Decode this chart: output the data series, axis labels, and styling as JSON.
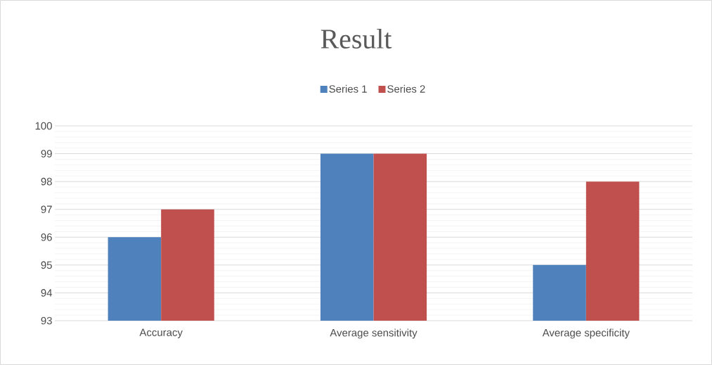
{
  "chart_data": {
    "type": "bar",
    "title": "Result",
    "categories": [
      "Accuracy",
      "Average sensitivity",
      "Average specificity"
    ],
    "series": [
      {
        "name": "Series 1",
        "color": "#4f81bd",
        "values": [
          96,
          99,
          95
        ]
      },
      {
        "name": "Series 2",
        "color": "#c0504d",
        "values": [
          97,
          99,
          98
        ]
      }
    ],
    "ylim": [
      93,
      100
    ],
    "yticks": [
      93,
      94,
      95,
      96,
      97,
      98,
      99,
      100
    ],
    "grid": "y",
    "legend": "top"
  }
}
